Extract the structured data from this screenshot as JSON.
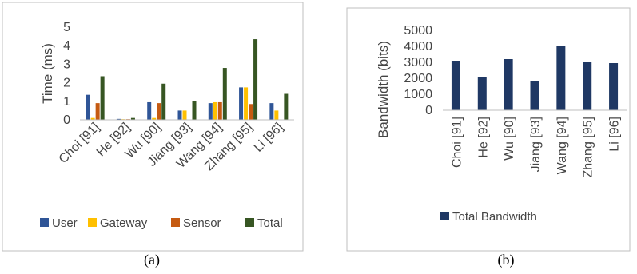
{
  "chart_data": [
    {
      "type": "bar",
      "categories": [
        "Choi [91]",
        "He [92]",
        "Wu [90]",
        "Jiang [93]",
        "Wang [94]",
        "Zhang [95]",
        "Li [96]"
      ],
      "series": [
        {
          "name": "User",
          "color": "#2f5597",
          "values": [
            1.35,
            0.05,
            0.95,
            0.5,
            0.9,
            1.75,
            0.9
          ]
        },
        {
          "name": "Gateway",
          "color": "#ffc000",
          "values": [
            0.1,
            0.02,
            0.1,
            0.5,
            0.95,
            1.75,
            0.5
          ]
        },
        {
          "name": "Sensor",
          "color": "#c55a11",
          "values": [
            0.9,
            0.02,
            0.9,
            0.0,
            0.95,
            0.85,
            0.0
          ]
        },
        {
          "name": "Total",
          "color": "#375623",
          "values": [
            2.35,
            0.1,
            1.95,
            1.0,
            2.8,
            4.35,
            1.4
          ]
        }
      ],
      "ylabel": "Time (ms)",
      "ylim": [
        0,
        5
      ],
      "yticks": [
        "0",
        "1",
        "2",
        "3",
        "4",
        "5"
      ],
      "grid": false,
      "legend": "bottom",
      "caption": "(a)"
    },
    {
      "type": "bar",
      "categories": [
        "Choi [91]",
        "He [92]",
        "Wu [90]",
        "Jiang [93]",
        "Wang [94]",
        "Zhang [95]",
        "Li [96]"
      ],
      "series": [
        {
          "name": "Total Bandwidth",
          "color": "#1f3864",
          "values": [
            3100,
            2050,
            3200,
            1850,
            4000,
            3000,
            2950
          ]
        }
      ],
      "ylabel": "Bandwidth (bits)",
      "ylim": [
        0,
        5000
      ],
      "yticks": [
        "0",
        "1000",
        "2000",
        "3000",
        "4000",
        "5000"
      ],
      "grid": false,
      "legend": "bottom",
      "caption": "(b)"
    }
  ]
}
